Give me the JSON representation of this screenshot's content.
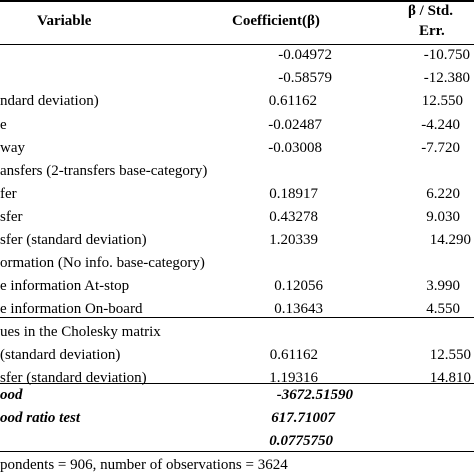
{
  "header": {
    "variable": "Variable",
    "coefficient": "Coefficient(β)",
    "ratio_line1": "β / Std.",
    "ratio_line2": "Err."
  },
  "rows": [
    {
      "label": "",
      "coef": "-0.04972",
      "ratio": "-10.750"
    },
    {
      "label": "",
      "coef": "-0.58579",
      "ratio": "-12.380"
    },
    {
      "label": "ndard deviation)",
      "coef": "0.61162",
      "ratio": "12.550"
    },
    {
      "label": "e",
      "coef": "-0.02487",
      "ratio": "-4.240"
    },
    {
      "label": "way",
      "coef": "-0.03008",
      "ratio": "-7.720"
    },
    {
      "label": "ansfers (2-transfers base-category)",
      "coef": "",
      "ratio": ""
    },
    {
      "label": "fer",
      "coef": "0.18917",
      "ratio": "6.220"
    },
    {
      "label": "sfer",
      "coef": "0.43278",
      "ratio": "9.030"
    },
    {
      "label": "sfer (standard deviation)",
      "coef": "1.20339",
      "ratio": "14.290"
    },
    {
      "label": "ormation (No info. base-category)",
      "coef": "",
      "ratio": ""
    },
    {
      "label": "e information At-stop",
      "coef": "0.12056",
      "ratio": "3.990"
    },
    {
      "label": "e information On-board",
      "coef": "0.13643",
      "ratio": "4.550"
    },
    {
      "label": "ues in the Cholesky matrix",
      "coef": "",
      "ratio": ""
    },
    {
      "label": "(standard deviation)",
      "coef": "0.61162",
      "ratio": "12.550"
    },
    {
      "label": "sfer (standard deviation)",
      "coef": "1.19316",
      "ratio": "14.810"
    }
  ],
  "stats": [
    {
      "label": "ood",
      "value": "-3672.51590"
    },
    {
      "label": "ood ratio test",
      "value": "617.71007"
    },
    {
      "label": "",
      "value": "0.0775750"
    }
  ],
  "footnote": "pondents = 906, number of observations = 3624"
}
